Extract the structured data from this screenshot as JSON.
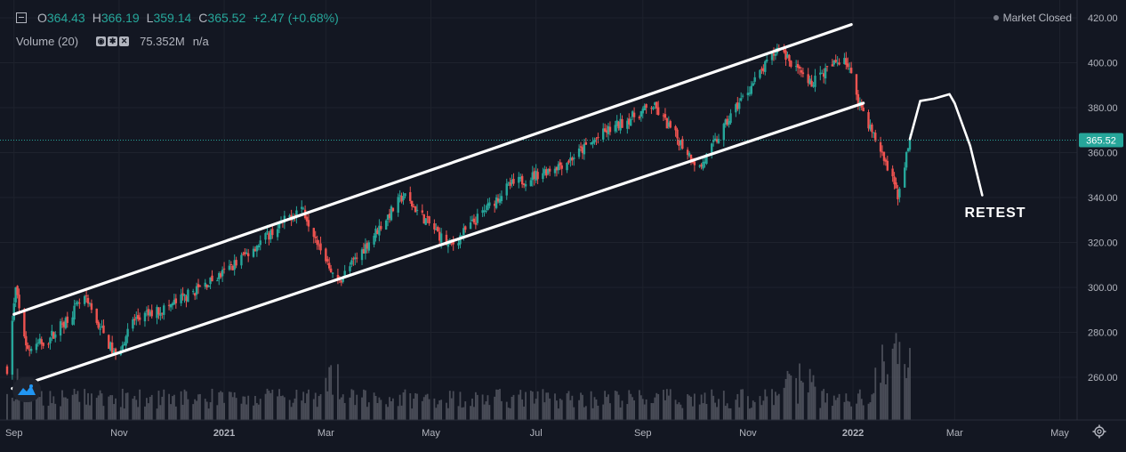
{
  "ohlc": {
    "open_label": "O",
    "open": "364.43",
    "high_label": "H",
    "high": "366.19",
    "low_label": "L",
    "low": "359.14",
    "close_label": "C",
    "close": "365.52",
    "change": "+2.47 (+0.68%)"
  },
  "volume": {
    "title": "Volume (20)",
    "value": "75.352M",
    "secondary": "n/a"
  },
  "market_status": "Market Closed",
  "price_marker": "365.52",
  "annotation": "RETEST",
  "colors": {
    "up": "#26a69a",
    "down": "#ef5350",
    "background": "#131722",
    "grid": "#1e222d",
    "drawing": "#ffffff",
    "volume": "#5d606b"
  },
  "icons": [
    "collapse-icon",
    "eye-icon",
    "settings-icon",
    "close-icon",
    "tradingview-logo",
    "gear-icon"
  ],
  "chart_data": {
    "type": "candlestick",
    "y_ticks": [
      "420.00",
      "400.00",
      "380.00",
      "360.00",
      "340.00",
      "320.00",
      "300.00",
      "280.00",
      "260.00"
    ],
    "x_ticks": [
      "Sep",
      "Nov",
      "2021",
      "Mar",
      "May",
      "Jul",
      "Sep",
      "Nov",
      "2022",
      "Mar",
      "May"
    ],
    "ylim": [
      244,
      428
    ],
    "last_price": 365.52,
    "price_path": [
      [
        "2020-08-28",
        264
      ],
      [
        "2020-09-02",
        299
      ],
      [
        "2020-09-08",
        272
      ],
      [
        "2020-09-21",
        277
      ],
      [
        "2020-10-12",
        295
      ],
      [
        "2020-10-30",
        269
      ],
      [
        "2020-11-09",
        285
      ],
      [
        "2020-12-01",
        292
      ],
      [
        "2020-12-31",
        306
      ],
      [
        "2021-02-15",
        336
      ],
      [
        "2021-03-08",
        302
      ],
      [
        "2021-04-15",
        341
      ],
      [
        "2021-05-12",
        318
      ],
      [
        "2021-06-15",
        345
      ],
      [
        "2021-07-19",
        356
      ],
      [
        "2021-08-10",
        369
      ],
      [
        "2021-09-07",
        381
      ],
      [
        "2021-10-04",
        353
      ],
      [
        "2021-10-25",
        380
      ],
      [
        "2021-11-19",
        407
      ],
      [
        "2021-12-06",
        390
      ],
      [
        "2021-12-27",
        403
      ],
      [
        "2022-01-05",
        382
      ],
      [
        "2022-01-21",
        353
      ],
      [
        "2022-01-27",
        341
      ],
      [
        "2022-02-03",
        365.52
      ]
    ],
    "channel_upper": [
      [
        "2020-09-01",
        288
      ],
      [
        "2021-12-31",
        417
      ]
    ],
    "channel_lower": [
      [
        "2020-08-31",
        255
      ],
      [
        "2022-01-07",
        382
      ]
    ],
    "projection": [
      [
        "2022-02-03",
        366
      ],
      [
        "2022-02-09",
        383
      ],
      [
        "2022-02-17",
        384
      ],
      [
        "2022-02-26",
        386
      ],
      [
        "2022-03-01",
        382
      ],
      [
        "2022-03-10",
        363
      ],
      [
        "2022-03-17",
        341
      ]
    ]
  }
}
